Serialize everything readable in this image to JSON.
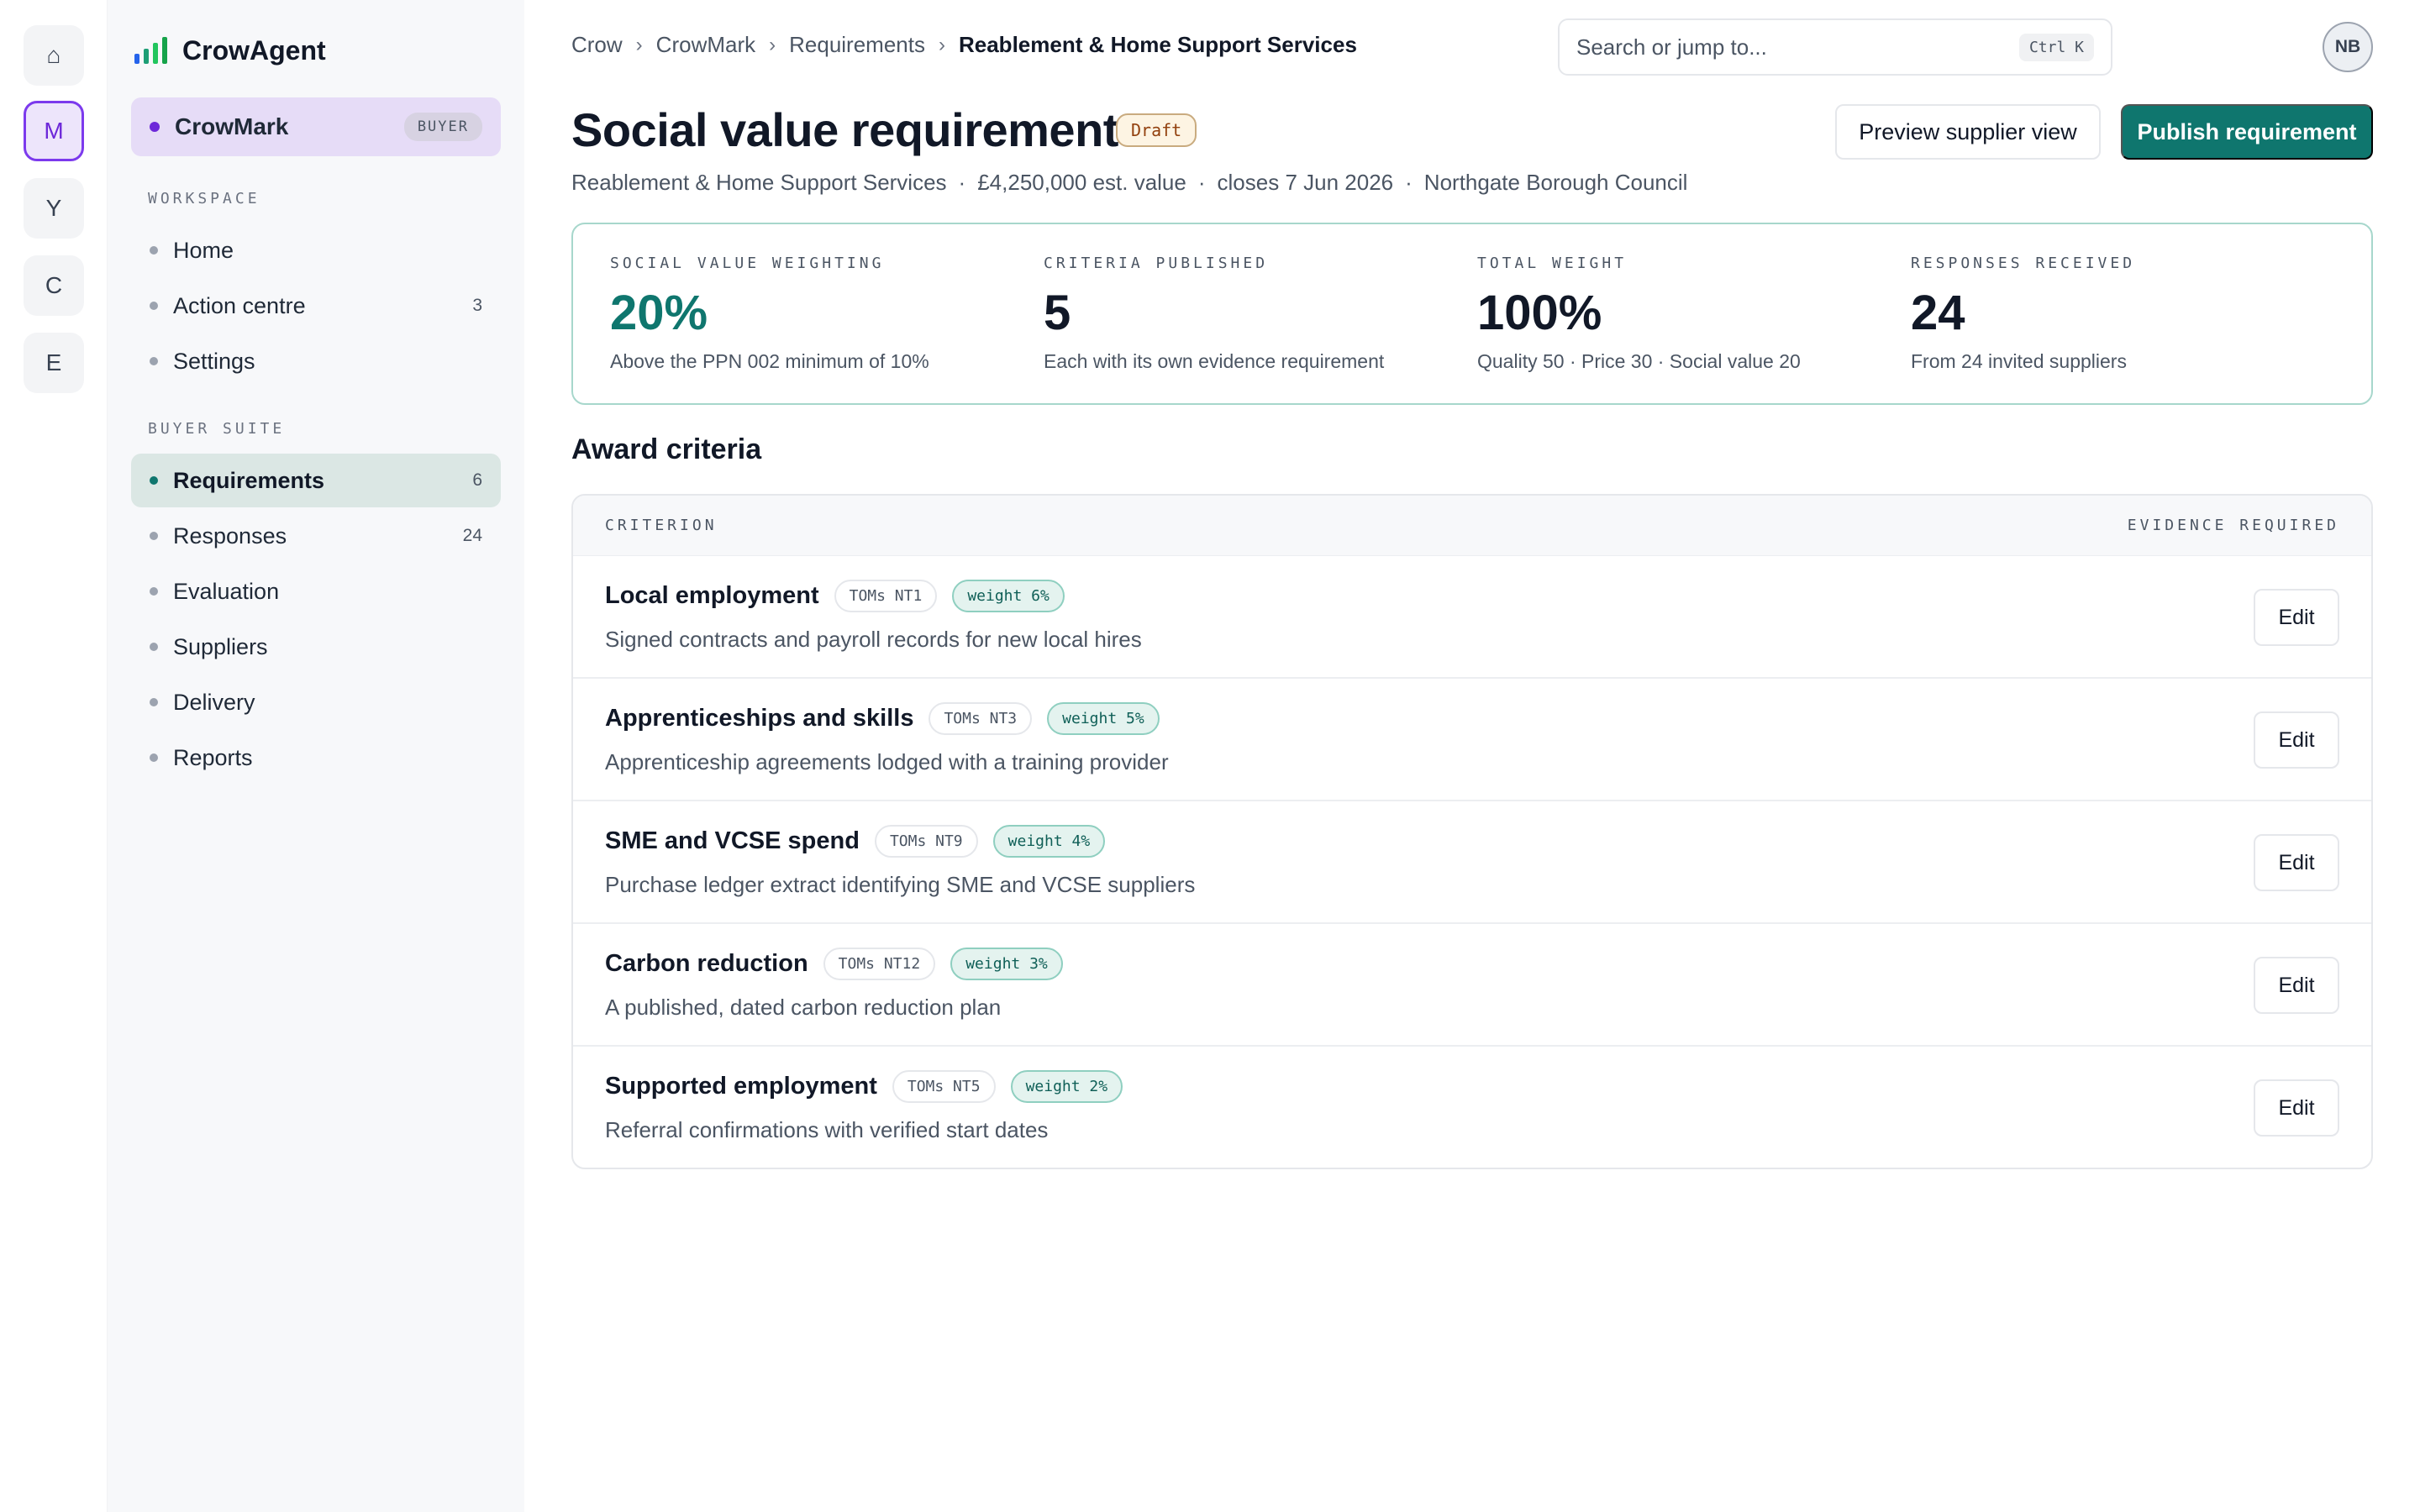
{
  "rail": {
    "items": [
      {
        "glyph": "⌂",
        "icon": "home-icon"
      },
      {
        "glyph": "M",
        "active": true
      },
      {
        "glyph": "Y"
      },
      {
        "glyph": "C"
      },
      {
        "glyph": "E"
      }
    ]
  },
  "brand": {
    "name": "CrowAgent",
    "icon": "bar-chart-icon",
    "colors": [
      "#2563eb",
      "#1d9e75",
      "#22c55e",
      "#16a34a"
    ]
  },
  "workspace": {
    "name": "CrowMark",
    "badge": "BUYER"
  },
  "sidebar": {
    "workspace_label": "WORKSPACE",
    "workspace_items": [
      {
        "label": "Home",
        "count": ""
      },
      {
        "label": "Action centre",
        "count": "3"
      },
      {
        "label": "Settings",
        "count": ""
      }
    ],
    "suite_label": "BUYER SUITE",
    "suite_items": [
      {
        "label": "Requirements",
        "count": "6",
        "active": true
      },
      {
        "label": "Responses",
        "count": "24"
      },
      {
        "label": "Evaluation",
        "count": ""
      },
      {
        "label": "Suppliers",
        "count": ""
      },
      {
        "label": "Delivery",
        "count": ""
      },
      {
        "label": "Reports",
        "count": ""
      }
    ]
  },
  "breadcrumb": {
    "items": [
      "Crow",
      "CrowMark",
      "Requirements"
    ],
    "current": "Reablement & Home Support Services",
    "separator": "›"
  },
  "search": {
    "placeholder": "Search or jump to...",
    "shortcut": "Ctrl K"
  },
  "user": {
    "initials": "NB"
  },
  "page": {
    "title": "Social value requirement",
    "status": "Draft",
    "meta": [
      "Reablement & Home Support Services",
      "£4,250,000 est. value",
      "closes 7 Jun 2026",
      "Northgate Borough Council"
    ],
    "meta_separator": "·",
    "preview_button": "Preview supplier view",
    "publish_button": "Publish requirement"
  },
  "stats": [
    {
      "label": "SOCIAL VALUE WEIGHTING",
      "value": "20%",
      "note": "Above the PPN 002 minimum of 10%",
      "accent": true
    },
    {
      "label": "CRITERIA PUBLISHED",
      "value": "5",
      "note": "Each with its own evidence requirement"
    },
    {
      "label": "TOTAL WEIGHT",
      "value": "100%",
      "note": "Quality 50 · Price 30 · Social value 20"
    },
    {
      "label": "RESPONSES RECEIVED",
      "value": "24",
      "note": "From 24 invited suppliers"
    }
  ],
  "criteria": {
    "section_title": "Award criteria",
    "col_criterion": "CRITERION",
    "col_evidence": "EVIDENCE REQUIRED",
    "edit_label": "Edit",
    "rows": [
      {
        "name": "Local employment",
        "toms": "TOMs NT1",
        "weight": "weight 6%",
        "evidence": "Signed contracts and payroll records for new local hires"
      },
      {
        "name": "Apprenticeships and skills",
        "toms": "TOMs NT3",
        "weight": "weight 5%",
        "evidence": "Apprenticeship agreements lodged with a training provider"
      },
      {
        "name": "SME and VCSE spend",
        "toms": "TOMs NT9",
        "weight": "weight 4%",
        "evidence": "Purchase ledger extract identifying SME and VCSE suppliers"
      },
      {
        "name": "Carbon reduction",
        "toms": "TOMs NT12",
        "weight": "weight 3%",
        "evidence": "A published, dated carbon reduction plan"
      },
      {
        "name": "Supported employment",
        "toms": "TOMs NT5",
        "weight": "weight 2%",
        "evidence": "Referral confirmations with verified start dates"
      }
    ]
  },
  "colors": {
    "accent": "#0f766e",
    "brand_purple": "#6d28d9",
    "draft": "#92400e"
  }
}
